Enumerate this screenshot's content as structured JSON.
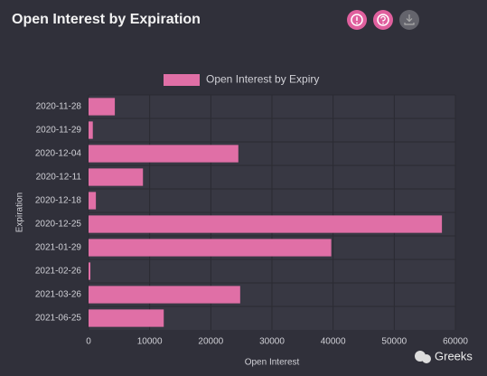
{
  "chart_data": {
    "type": "hbar",
    "title": "Open Interest by Expiration",
    "legend": "Open Interest by Expiry",
    "color": "#e06fa6",
    "categories": [
      "2020-11-28",
      "2020-11-29",
      "2020-12-04",
      "2020-12-11",
      "2020-12-18",
      "2020-12-25",
      "2021-01-29",
      "2021-02-26",
      "2021-03-26",
      "2021-06-25"
    ],
    "values": [
      4300,
      700,
      24500,
      8900,
      1200,
      57800,
      39700,
      300,
      24800,
      12300
    ],
    "xlim": [
      0,
      60000
    ],
    "xticks": [
      0,
      10000,
      20000,
      30000,
      40000,
      50000,
      60000
    ],
    "xlabel": "Open Interest",
    "ylabel": "Expiration",
    "grid": true
  },
  "watermark": "Greeks"
}
